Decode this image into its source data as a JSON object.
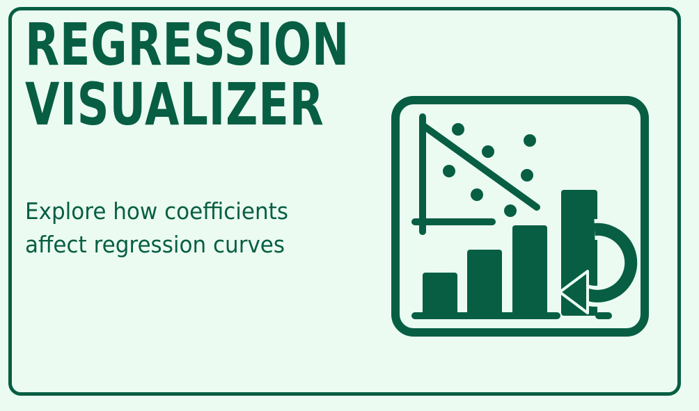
{
  "title": {
    "line1": "REGRESSION",
    "line2": "VISUALIZER"
  },
  "subtitle": {
    "line1": "Explore how coefficients",
    "line2": "affect regression curves"
  },
  "colors": {
    "background": "#ebfbf2",
    "accent": "#075e43"
  },
  "icon": "regression-chart-icon"
}
